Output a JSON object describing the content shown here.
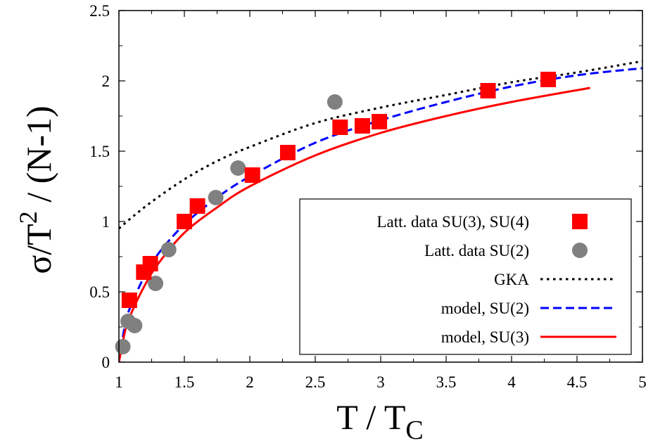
{
  "chart_data": {
    "type": "line",
    "xlabel": "T / T",
    "xlabel_sub": "C",
    "ylabel_pre": "σ/T",
    "ylabel_sup": "2",
    "ylabel_post": " / (N-1)",
    "xlim": [
      1,
      5
    ],
    "ylim": [
      0,
      2.5
    ],
    "xticks": [
      "1",
      "1.5",
      "2",
      "2.5",
      "3",
      "3.5",
      "4",
      "4.5",
      "5"
    ],
    "yticks": [
      "0",
      "0.5",
      "1",
      "1.5",
      "2",
      "2.5"
    ],
    "grid": false,
    "legend_position": "bottom-right",
    "series": [
      {
        "name": "Latt. data SU(3), SU(4)",
        "kind": "scatter",
        "marker": "square",
        "color": "#ff0000",
        "points": [
          [
            1.08,
            0.44
          ],
          [
            1.19,
            0.64
          ],
          [
            1.24,
            0.7
          ],
          [
            1.5,
            1.0
          ],
          [
            1.6,
            1.11
          ],
          [
            2.02,
            1.33
          ],
          [
            2.29,
            1.49
          ],
          [
            2.69,
            1.67
          ],
          [
            2.86,
            1.68
          ],
          [
            2.99,
            1.71
          ],
          [
            3.82,
            1.93
          ],
          [
            4.28,
            2.01
          ]
        ]
      },
      {
        "name": "Latt. data SU(2)",
        "kind": "scatter",
        "marker": "circle",
        "color": "#808080",
        "points": [
          [
            1.03,
            0.11
          ],
          [
            1.07,
            0.29
          ],
          [
            1.12,
            0.26
          ],
          [
            1.28,
            0.56
          ],
          [
            1.38,
            0.8
          ],
          [
            1.74,
            1.17
          ],
          [
            1.91,
            1.38
          ],
          [
            2.65,
            1.85
          ]
        ]
      },
      {
        "name": "GKA",
        "kind": "line",
        "dash": "dotted",
        "color": "#000000",
        "points": [
          [
            1.0,
            0.95
          ],
          [
            1.1,
            1.03
          ],
          [
            1.25,
            1.14
          ],
          [
            1.5,
            1.3
          ],
          [
            1.75,
            1.43
          ],
          [
            2.0,
            1.53
          ],
          [
            2.5,
            1.7
          ],
          [
            3.0,
            1.81
          ],
          [
            3.5,
            1.9
          ],
          [
            4.0,
            1.99
          ],
          [
            4.5,
            2.06
          ],
          [
            5.0,
            2.14
          ]
        ]
      },
      {
        "name": "model, SU(2)",
        "kind": "line",
        "dash": "dashed",
        "color": "#0000ff",
        "points": [
          [
            1.0,
            0.0
          ],
          [
            1.05,
            0.28
          ],
          [
            1.1,
            0.42
          ],
          [
            1.2,
            0.62
          ],
          [
            1.3,
            0.77
          ],
          [
            1.5,
            0.98
          ],
          [
            1.75,
            1.17
          ],
          [
            2.0,
            1.32
          ],
          [
            2.5,
            1.56
          ],
          [
            3.0,
            1.72
          ],
          [
            3.5,
            1.85
          ],
          [
            4.0,
            1.96
          ],
          [
            4.5,
            2.04
          ],
          [
            5.0,
            2.09
          ]
        ]
      },
      {
        "name": "model, SU(3)",
        "kind": "line",
        "dash": "solid",
        "color": "#ff0000",
        "points": [
          [
            1.0,
            0.0
          ],
          [
            1.05,
            0.23
          ],
          [
            1.1,
            0.36
          ],
          [
            1.2,
            0.55
          ],
          [
            1.3,
            0.7
          ],
          [
            1.5,
            0.92
          ],
          [
            1.75,
            1.1
          ],
          [
            2.0,
            1.25
          ],
          [
            2.5,
            1.47
          ],
          [
            3.0,
            1.63
          ],
          [
            3.5,
            1.75
          ],
          [
            4.0,
            1.85
          ],
          [
            4.6,
            1.95
          ]
        ]
      }
    ]
  }
}
